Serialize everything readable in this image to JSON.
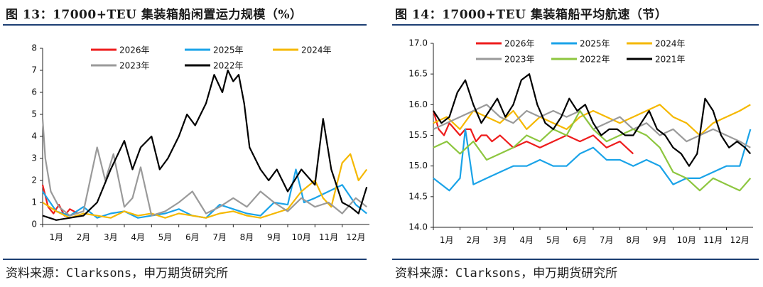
{
  "left": {
    "title": "图 13：17000+TEU 集装箱船闲置运力规模（%）",
    "source": "资料来源：Clarksons，申万期货研究所"
  },
  "right": {
    "title": "图 14：17000+TEU 集装箱船平均航速（节）",
    "source": "资料来源：Clarksons，申万期货研究所"
  },
  "colors": {
    "2026年": "#ee1c1c",
    "2025年": "#1aa3e8",
    "2024年": "#f5b800",
    "2023年": "#9a9a9a",
    "2022年": "#8dc63f",
    "2021年": "#000000"
  },
  "chart_data": [
    {
      "type": "line",
      "ylim": [
        0,
        8
      ],
      "yticks": [
        "0",
        "1",
        "2",
        "3",
        "4",
        "5",
        "6",
        "7",
        "8"
      ],
      "xticks": [
        "1月",
        "2月",
        "3月",
        "4月",
        "5月",
        "6月",
        "7月",
        "8月",
        "9月",
        "10月",
        "11月",
        "12月"
      ],
      "legend_placement": "top",
      "grid": false,
      "series": [
        {
          "name": "2026年",
          "color_key": "2026年",
          "x_months": [
            1,
            1.2,
            1.4,
            1.6,
            1.8,
            2.0,
            2.3
          ],
          "values": [
            1.8,
            0.8,
            0.5,
            0.9,
            0.4,
            0.7,
            0.5
          ]
        },
        {
          "name": "2025年",
          "color_key": "2025年",
          "x_months": [
            1,
            1.5,
            2,
            2.5,
            3,
            3.5,
            4,
            4.5,
            5,
            5.5,
            6,
            6.5,
            7,
            7.5,
            8,
            8.5,
            9,
            9.5,
            10,
            10.3,
            10.6,
            11,
            11.5,
            12,
            12.5,
            12.9
          ],
          "values": [
            1.5,
            0.6,
            0.4,
            0.8,
            0.3,
            0.5,
            0.6,
            0.3,
            0.4,
            0.5,
            0.7,
            0.4,
            0.3,
            0.9,
            0.7,
            0.5,
            0.4,
            1.0,
            0.9,
            2.5,
            1.0,
            1.2,
            1.5,
            1.8,
            0.9,
            0.5
          ]
        },
        {
          "name": "2024年",
          "color_key": "2024年",
          "x_months": [
            1,
            1.5,
            2,
            2.5,
            3,
            3.5,
            4,
            4.5,
            5,
            5.5,
            6,
            6.5,
            7,
            7.5,
            8,
            8.5,
            9,
            9.5,
            10,
            10.5,
            11,
            11.3,
            11.6,
            12,
            12.3,
            12.6,
            12.9
          ],
          "values": [
            1.0,
            0.6,
            0.3,
            0.5,
            0.4,
            0.3,
            0.6,
            0.4,
            0.5,
            0.3,
            0.5,
            0.4,
            0.3,
            0.5,
            0.6,
            0.4,
            0.3,
            0.5,
            0.7,
            1.5,
            2.0,
            1.2,
            0.8,
            2.8,
            3.2,
            2.0,
            2.5
          ]
        },
        {
          "name": "2023年",
          "color_key": "2023年",
          "x_months": [
            1,
            1.1,
            1.3,
            1.6,
            2,
            2.5,
            3,
            3.3,
            3.6,
            4,
            4.3,
            4.6,
            5,
            5.5,
            6,
            6.5,
            7,
            7.5,
            8,
            8.5,
            9,
            9.5,
            10,
            10.5,
            11,
            11.5,
            12,
            12.5,
            12.9
          ],
          "values": [
            4.8,
            3.0,
            1.5,
            0.8,
            0.4,
            0.6,
            3.5,
            2.0,
            3.2,
            0.8,
            1.2,
            2.6,
            0.4,
            0.6,
            1.0,
            1.5,
            0.5,
            0.8,
            1.2,
            0.8,
            1.5,
            1.0,
            0.6,
            1.2,
            0.8,
            1.0,
            0.5,
            1.2,
            0.8
          ]
        },
        {
          "name": "2022年",
          "color_key": "2022年",
          "color_override": "#000000",
          "x_months": [
            1,
            1.5,
            2,
            2.5,
            3,
            3.5,
            4,
            4.3,
            4.6,
            5,
            5.3,
            5.6,
            6,
            6.3,
            6.6,
            7,
            7.3,
            7.6,
            7.8,
            8,
            8.2,
            8.4,
            8.6,
            9,
            9.3,
            9.6,
            10,
            10.5,
            11,
            11.3,
            11.6,
            12,
            12.3,
            12.6,
            12.9
          ],
          "values": [
            0.4,
            0.2,
            0.3,
            0.4,
            1.0,
            2.5,
            3.8,
            2.5,
            3.5,
            4.0,
            2.5,
            3.0,
            4.0,
            5.0,
            4.5,
            5.5,
            6.8,
            6.0,
            7.0,
            6.5,
            6.8,
            5.5,
            3.5,
            2.5,
            2.0,
            2.5,
            1.5,
            2.5,
            1.8,
            4.8,
            2.5,
            1.0,
            0.8,
            0.5,
            1.7
          ]
        }
      ]
    },
    {
      "type": "line",
      "ylim": [
        14.0,
        17.0
      ],
      "yticks": [
        "14.0",
        "14.5",
        "15.0",
        "15.5",
        "16.0",
        "16.5",
        "17.0"
      ],
      "xticks": [
        "1月",
        "2月",
        "3月",
        "4月",
        "5月",
        "6月",
        "7月",
        "8月",
        "9月",
        "10月",
        "11月",
        "12月"
      ],
      "legend_placement": "top",
      "grid": false,
      "series": [
        {
          "name": "2026年",
          "color_key": "2026年",
          "x_months": [
            1,
            1.2,
            1.4,
            1.6,
            1.8,
            2.0,
            2.2,
            2.4,
            2.6,
            2.8,
            3.0,
            3.2,
            3.5,
            4.0,
            4.5,
            5.0,
            5.5,
            6.0,
            6.5,
            7.0,
            7.5,
            8.0,
            8.5
          ],
          "values": [
            15.9,
            15.6,
            15.5,
            15.7,
            15.6,
            15.5,
            15.6,
            15.6,
            15.4,
            15.5,
            15.5,
            15.4,
            15.5,
            15.3,
            15.4,
            15.3,
            15.4,
            15.5,
            15.4,
            15.5,
            15.3,
            15.4,
            15.2
          ]
        },
        {
          "name": "2025年",
          "color_key": "2025年",
          "x_months": [
            1,
            1.3,
            1.6,
            2.0,
            2.2,
            2.5,
            3.0,
            3.5,
            4.0,
            4.5,
            5.0,
            5.5,
            6.0,
            6.5,
            7.0,
            7.5,
            8.0,
            8.5,
            9.0,
            9.5,
            10.0,
            10.5,
            11.0,
            11.5,
            12.0,
            12.5,
            12.9
          ],
          "values": [
            14.8,
            14.7,
            14.6,
            14.8,
            15.6,
            14.7,
            14.8,
            14.9,
            15.0,
            15.0,
            15.1,
            15.0,
            15.0,
            15.2,
            15.3,
            15.1,
            15.1,
            15.0,
            15.1,
            15.0,
            14.7,
            14.8,
            14.8,
            14.9,
            15.0,
            15.0,
            15.6
          ]
        },
        {
          "name": "2024年",
          "color_key": "2024年",
          "x_months": [
            1,
            1.5,
            2,
            2.5,
            3,
            3.5,
            4,
            4.5,
            5,
            5.5,
            6,
            6.5,
            7,
            7.5,
            8,
            8.5,
            9,
            9.5,
            10,
            10.5,
            11,
            11.5,
            12,
            12.5,
            12.9
          ],
          "values": [
            15.7,
            15.8,
            15.6,
            15.9,
            15.8,
            15.7,
            15.9,
            15.6,
            15.8,
            15.7,
            15.6,
            15.8,
            15.9,
            15.8,
            15.7,
            15.8,
            15.9,
            16.0,
            15.8,
            15.7,
            15.5,
            15.7,
            15.8,
            15.9,
            16.0
          ]
        },
        {
          "name": "2023年",
          "color_key": "2023年",
          "x_months": [
            1,
            1.5,
            2,
            2.5,
            3,
            3.5,
            4,
            4.5,
            5,
            5.5,
            6,
            6.5,
            7,
            7.5,
            8,
            8.5,
            9,
            9.5,
            10,
            10.5,
            11,
            11.5,
            12,
            12.5,
            12.9
          ],
          "values": [
            15.6,
            15.7,
            15.8,
            15.9,
            16.0,
            15.8,
            15.7,
            15.9,
            15.8,
            15.9,
            15.8,
            15.9,
            15.6,
            15.7,
            15.8,
            15.6,
            15.7,
            15.5,
            15.6,
            15.4,
            15.5,
            15.6,
            15.5,
            15.4,
            15.3
          ]
        },
        {
          "name": "2022年",
          "color_key": "2022年",
          "x_months": [
            1,
            1.5,
            2,
            2.5,
            3,
            3.5,
            4,
            4.5,
            5,
            5.5,
            6,
            6.5,
            7,
            7.5,
            8,
            8.5,
            9,
            9.5,
            10,
            10.5,
            11,
            11.5,
            12,
            12.5,
            12.9
          ],
          "values": [
            15.3,
            15.4,
            15.2,
            15.4,
            15.1,
            15.2,
            15.3,
            15.5,
            15.4,
            15.6,
            15.5,
            15.9,
            15.6,
            15.4,
            15.5,
            15.6,
            15.5,
            15.3,
            14.9,
            14.8,
            14.6,
            14.8,
            14.7,
            14.6,
            14.8
          ]
        },
        {
          "name": "2021年",
          "color_key": "2021年",
          "x_months": [
            1,
            1.3,
            1.6,
            1.9,
            2.2,
            2.5,
            2.8,
            3.1,
            3.4,
            3.7,
            4.0,
            4.3,
            4.6,
            4.9,
            5.2,
            5.5,
            5.8,
            6.1,
            6.4,
            6.7,
            7.0,
            7.3,
            7.6,
            7.9,
            8.2,
            8.5,
            8.8,
            9.1,
            9.4,
            9.7,
            10.0,
            10.3,
            10.6,
            10.9,
            11.2,
            11.5,
            11.8,
            12.1,
            12.4,
            12.7,
            12.9
          ],
          "values": [
            15.9,
            15.7,
            15.8,
            16.2,
            16.4,
            16.0,
            15.7,
            15.9,
            16.1,
            15.8,
            16.0,
            16.4,
            16.5,
            16.0,
            15.7,
            15.6,
            15.8,
            16.1,
            15.9,
            16.0,
            15.7,
            15.5,
            15.6,
            15.6,
            15.5,
            15.5,
            15.7,
            15.9,
            15.6,
            15.5,
            15.3,
            15.2,
            15.0,
            15.2,
            16.1,
            15.9,
            15.5,
            15.3,
            15.4,
            15.3,
            15.2
          ]
        }
      ]
    }
  ]
}
